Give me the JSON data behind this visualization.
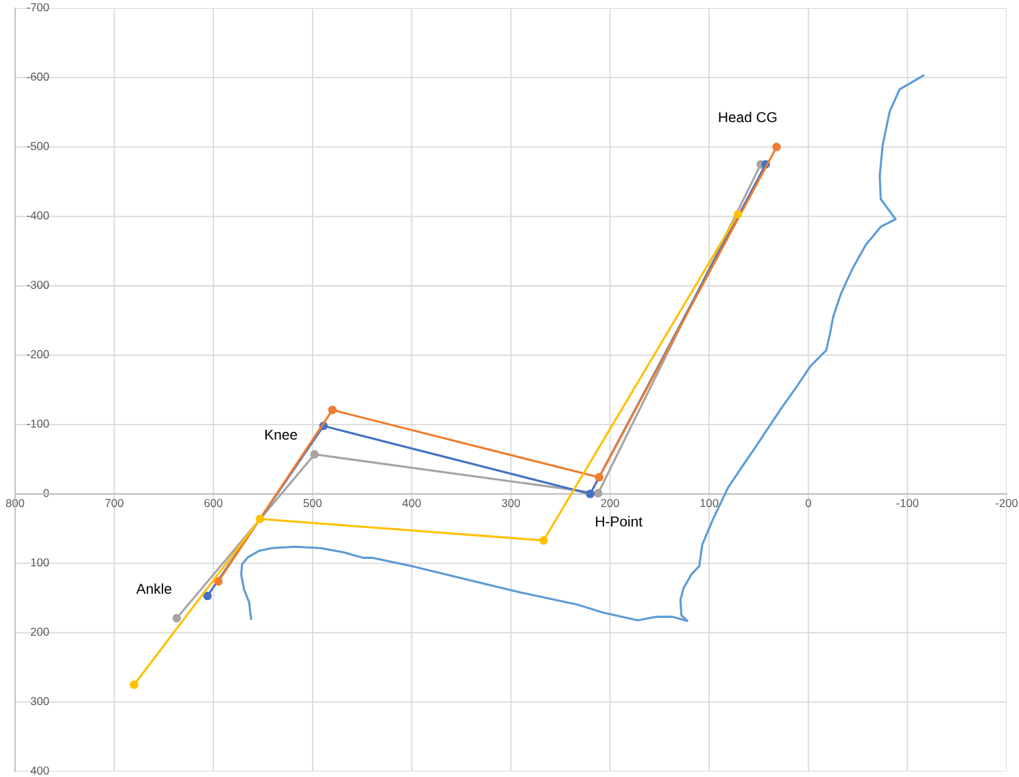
{
  "chart_data": {
    "type": "line",
    "xlim": [
      800,
      -200
    ],
    "ylim": [
      400,
      -700
    ],
    "xticks": [
      800,
      700,
      600,
      500,
      400,
      300,
      200,
      100,
      0,
      -100,
      -200
    ],
    "yticks": [
      -700,
      -600,
      -500,
      -400,
      -300,
      -200,
      -100,
      0,
      100,
      200,
      300,
      400
    ],
    "grid": true,
    "line_style": "solid",
    "series": [
      {
        "color": "#5b9bd5",
        "marker": "none",
        "x": [
          562,
          564,
          569,
          572,
          571,
          565,
          554,
          541,
          518,
          492,
          469,
          449,
          440,
          400,
          331,
          290,
          234,
          207,
          172,
          153,
          137,
          122,
          128,
          129,
          126,
          118,
          110,
          107,
          96,
          81,
          67,
          55,
          41,
          27,
          13,
          -2,
          -18,
          -22,
          -25,
          -33,
          -45,
          -58,
          -73,
          -88,
          -73,
          -72,
          -75,
          -82,
          -92,
          -116
        ],
        "values": [
          180,
          156,
          138,
          116,
          101,
          91,
          82,
          78,
          76,
          78,
          84,
          92,
          92,
          104,
          128,
          142,
          159,
          171,
          182,
          177,
          177,
          183,
          175,
          153,
          136,
          116,
          104,
          73,
          36,
          -9,
          -39,
          -64,
          -94,
          -124,
          -152,
          -184,
          -207,
          -232,
          -255,
          -289,
          -326,
          -359,
          -385,
          -396,
          -425,
          -459,
          -503,
          -551,
          -583,
          -603
        ]
      },
      {
        "color": "#a5a5a5",
        "marker": "circle",
        "x": [
          637,
          498,
          212,
          48
        ],
        "values": [
          179,
          -57,
          -1,
          -475
        ]
      },
      {
        "color": "#4472c4",
        "marker": "circle",
        "x": [
          606,
          489,
          220,
          43
        ],
        "values": [
          147,
          -98,
          0,
          -475
        ]
      },
      {
        "color": "#ed7d31",
        "marker": "circle",
        "x": [
          595,
          480,
          211,
          32
        ],
        "values": [
          126,
          -121,
          -24,
          -500
        ]
      },
      {
        "color": "#ffc000",
        "marker": "circle",
        "x": [
          680,
          553,
          267,
          71
        ],
        "values": [
          275,
          36,
          67,
          -403
        ]
      }
    ],
    "annotations": [
      "Ankle",
      "Knee",
      "H-Point",
      "Head CG"
    ]
  }
}
